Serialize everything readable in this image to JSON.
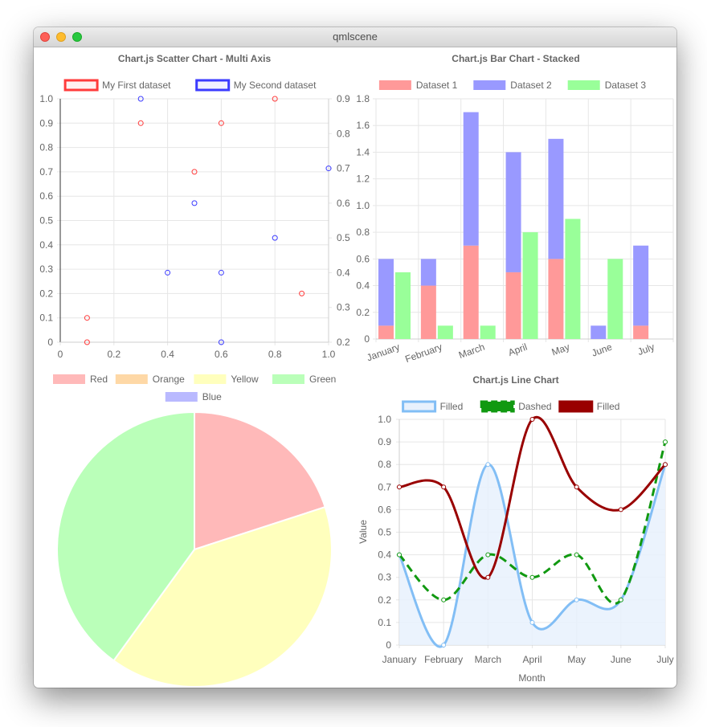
{
  "window": {
    "title": "qmlscene"
  },
  "colors": {
    "red": "#ff6384",
    "orange": "#ff9f40",
    "yellow": "#ffcd56",
    "green": "#4bc0c0",
    "blue": "#36a2eb",
    "scatter_red": "#ff3b3b",
    "scatter_blue": "#3b3bff",
    "bar1": "#ff9999",
    "bar2": "#9999ff",
    "bar3": "#99ff99",
    "pie_red": "#ffb9b9",
    "pie_orange": "#fed8a6",
    "pie_yellow": "#ffffbd",
    "pie_green": "#baffb9",
    "pie_blue": "#b9b9ff",
    "line_filled_blue": "#82bef5",
    "line_fill_area": "#e8f1fd",
    "line_dashed": "#119911",
    "line_dark_red": "#990000"
  },
  "chart_data": [
    {
      "type": "scatter",
      "title": "Chart.js Scatter Chart - Multi Axis",
      "legend": {
        "position": "top"
      },
      "series": [
        {
          "name": "My First dataset",
          "axis": "left",
          "points": [
            [
              0.1,
              0
            ],
            [
              0.1,
              0.1
            ],
            [
              0.3,
              0.9
            ],
            [
              0.5,
              0.7
            ],
            [
              0.6,
              0.9
            ],
            [
              0.8,
              1.0
            ],
            [
              0.9,
              0.2
            ]
          ]
        },
        {
          "name": "My Second dataset",
          "axis": "right",
          "points": [
            [
              0.3,
              0.9
            ],
            [
              0.4,
              0.4
            ],
            [
              0.5,
              0.6
            ],
            [
              0.6,
              0.4
            ],
            [
              0.6,
              0.2
            ],
            [
              0.8,
              0.5
            ],
            [
              1.0,
              0.7
            ]
          ]
        }
      ],
      "xlim": [
        0,
        1.0
      ],
      "ylim_left": [
        0,
        1.0
      ],
      "ylim_right": [
        0.2,
        0.9
      ],
      "x_ticks": [
        "0",
        "0.2",
        "0.4",
        "0.6",
        "0.8",
        "1.0"
      ],
      "y_ticks_left": [
        "0",
        "0.1",
        "0.2",
        "0.3",
        "0.4",
        "0.5",
        "0.6",
        "0.7",
        "0.8",
        "0.9",
        "1.0"
      ],
      "y_ticks_right": [
        "0.2",
        "0.3",
        "0.4",
        "0.5",
        "0.6",
        "0.7",
        "0.8",
        "0.9"
      ],
      "grid": true
    },
    {
      "type": "bar",
      "stacked": true,
      "title": "Chart.js Bar Chart - Stacked",
      "legend": {
        "position": "top"
      },
      "categories": [
        "January",
        "February",
        "March",
        "April",
        "May",
        "June",
        "July"
      ],
      "series": [
        {
          "name": "Dataset 1",
          "stack": 0,
          "values": [
            0.1,
            0.4,
            0.7,
            0.5,
            0.6,
            0,
            0.1
          ]
        },
        {
          "name": "Dataset 2",
          "stack": 0,
          "values": [
            0.5,
            0.2,
            1.0,
            0.9,
            0.9,
            0.1,
            0.6
          ]
        },
        {
          "name": "Dataset 3",
          "stack": 1,
          "values": [
            0.5,
            0.1,
            0.1,
            0.8,
            0.9,
            0.6,
            0
          ]
        }
      ],
      "ylim": [
        0,
        1.8
      ],
      "y_ticks": [
        "0",
        "0.2",
        "0.4",
        "0.6",
        "0.8",
        "1.0",
        "1.2",
        "1.4",
        "1.6",
        "1.8"
      ],
      "grid": true
    },
    {
      "type": "pie",
      "legend": {
        "position": "top"
      },
      "labels": [
        "Red",
        "Orange",
        "Yellow",
        "Green",
        "Blue"
      ],
      "values": [
        0.2,
        0,
        0.4,
        0.4,
        0
      ]
    },
    {
      "type": "line",
      "title": "Chart.js Line Chart",
      "legend": {
        "position": "top"
      },
      "categories": [
        "January",
        "February",
        "March",
        "April",
        "May",
        "June",
        "July"
      ],
      "series": [
        {
          "name": "Filled",
          "values": [
            0.4,
            0,
            0.8,
            0.1,
            0.2,
            0.2,
            0.8
          ],
          "fill": true
        },
        {
          "name": "Dashed",
          "values": [
            0.4,
            0.2,
            0.4,
            0.3,
            0.4,
            0.2,
            0.9
          ],
          "dashed": true
        },
        {
          "name": "Filled",
          "values": [
            0.7,
            0.7,
            0.3,
            1.0,
            0.7,
            0.6,
            0.8
          ],
          "fill": false
        }
      ],
      "xlabel": "Month",
      "ylabel": "Value",
      "ylim": [
        0,
        1.0
      ],
      "y_ticks": [
        "0",
        "0.1",
        "0.2",
        "0.3",
        "0.4",
        "0.5",
        "0.6",
        "0.7",
        "0.8",
        "0.9",
        "1.0"
      ],
      "grid": true
    }
  ]
}
